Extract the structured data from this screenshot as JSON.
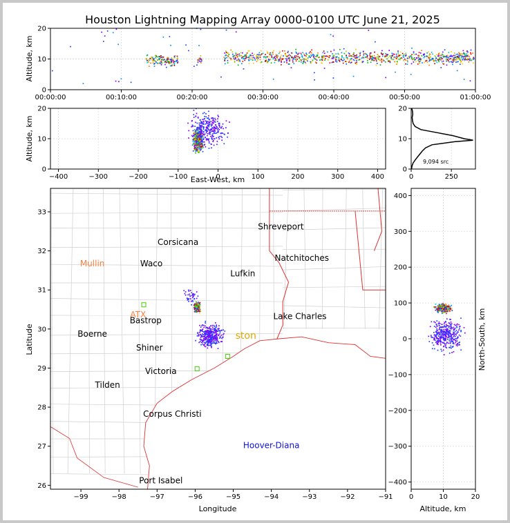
{
  "title": "Houston Lightning Mapping Array 0000-0100 UTC June 21, 2025",
  "chart_data": [
    {
      "type": "scatter",
      "panel": "altitude-time",
      "ylabel": "Altitude, km",
      "xlim": [
        "00:00:00",
        "01:00:00"
      ],
      "ylim": [
        0,
        20
      ],
      "xticks": [
        "00:00:00",
        "00:10:00",
        "00:20:00",
        "00:30:00",
        "00:40:00",
        "00:50:00",
        "01:00:00"
      ],
      "yticks": [
        "0",
        "10",
        "20"
      ],
      "grid": true,
      "clusters": [
        {
          "x_min": 13.5,
          "x_max": 18.0,
          "y_center": 9.5,
          "y_spread": 2.5,
          "count": 140
        },
        {
          "x_min": 20.8,
          "x_max": 21.4,
          "y_center": 10.0,
          "y_spread": 2.0,
          "count": 20
        },
        {
          "x_min": 24.5,
          "x_max": 59.8,
          "y_center": 10.5,
          "y_spread": 3.0,
          "count": 900
        }
      ]
    },
    {
      "type": "scatter",
      "panel": "altitude-east-west",
      "xlabel": "East-West, km",
      "ylabel": "Altitude, km",
      "xlim": [
        -420,
        420
      ],
      "ylim": [
        0,
        20
      ],
      "xticks": [
        "-400",
        "-300",
        "-200",
        "-100",
        "0",
        "100",
        "200",
        "300",
        "400"
      ],
      "yticks": [
        "0",
        "10",
        "20"
      ],
      "grid": true,
      "clusters": [
        {
          "x_center": -50,
          "x_spread": 12,
          "y_center": 9.5,
          "y_spread": 3.5,
          "count": 450,
          "dense": true
        },
        {
          "x_center": -25,
          "x_spread": 50,
          "y_center": 13.0,
          "y_spread": 6.0,
          "count": 300
        }
      ]
    },
    {
      "type": "line",
      "panel": "altitude-histogram",
      "xlim": [
        0,
        400
      ],
      "ylim": [
        0,
        20
      ],
      "xticks": [
        "0",
        "250"
      ],
      "yticks": [
        "0",
        "10",
        "20"
      ],
      "annotation": "9,094 src",
      "grid": true,
      "points": [
        [
          2,
          0
        ],
        [
          5,
          1
        ],
        [
          12,
          2
        ],
        [
          25,
          3
        ],
        [
          40,
          4
        ],
        [
          55,
          5
        ],
        [
          70,
          6
        ],
        [
          90,
          7
        ],
        [
          130,
          8
        ],
        [
          270,
          9
        ],
        [
          385,
          9.5
        ],
        [
          330,
          10
        ],
        [
          260,
          11
        ],
        [
          160,
          12
        ],
        [
          60,
          13
        ],
        [
          25,
          14
        ],
        [
          12,
          15
        ],
        [
          8,
          16
        ],
        [
          6,
          17
        ],
        [
          10,
          18
        ],
        [
          8,
          19
        ],
        [
          4,
          20
        ]
      ]
    },
    {
      "type": "scatter",
      "panel": "plan-view-map",
      "xlabel": "Longitude",
      "ylabel": "Latitude",
      "xlim": [
        -99.8,
        -91
      ],
      "ylim": [
        25.9,
        33.6
      ],
      "xticks": [
        "−99",
        "−98",
        "−97",
        "−96",
        "−95",
        "−94",
        "−93",
        "−92",
        "−91"
      ],
      "yticks": [
        "26",
        "27",
        "28",
        "29",
        "30",
        "31",
        "32",
        "33"
      ],
      "places": [
        {
          "name": "Shreveport",
          "lon": -93.75,
          "lat": 32.55,
          "color": "#000000"
        },
        {
          "name": "Corsicana",
          "lon": -96.45,
          "lat": 32.15,
          "color": "#000000"
        },
        {
          "name": "Mullin",
          "lon": -98.7,
          "lat": 31.6,
          "color": "#ff8040"
        },
        {
          "name": "Waco",
          "lon": -97.15,
          "lat": 31.6,
          "color": "#000000"
        },
        {
          "name": "Natchitoches",
          "lon": -93.2,
          "lat": 31.75,
          "color": "#000000"
        },
        {
          "name": "Lufkin",
          "lon": -94.75,
          "lat": 31.35,
          "color": "#000000"
        },
        {
          "name": "ATX",
          "lon": -97.5,
          "lat": 30.3,
          "color": "#ff8040"
        },
        {
          "name": "Bastrop",
          "lon": -97.3,
          "lat": 30.15,
          "color": "#000000"
        },
        {
          "name": "Lake Charles",
          "lon": -93.25,
          "lat": 30.25,
          "color": "#000000"
        },
        {
          "name": "Boerne",
          "lon": -98.7,
          "lat": 29.8,
          "color": "#000000"
        },
        {
          "name": "ston",
          "lon": -94.67,
          "lat": 29.75,
          "color": "#e0a800"
        },
        {
          "name": "Shiner",
          "lon": -97.2,
          "lat": 29.45,
          "color": "#000000"
        },
        {
          "name": "Victoria",
          "lon": -96.9,
          "lat": 28.85,
          "color": "#000000"
        },
        {
          "name": "Tilden",
          "lon": -98.3,
          "lat": 28.5,
          "color": "#000000"
        },
        {
          "name": "Corpus Christi",
          "lon": -96.6,
          "lat": 27.75,
          "color": "#000000"
        },
        {
          "name": "Hoover-Diana",
          "lon": -94.0,
          "lat": 26.95,
          "color": "#1010e0"
        },
        {
          "name": "Port Isabel",
          "lon": -96.9,
          "lat": 26.05,
          "color": "#000000"
        }
      ],
      "stations": [
        {
          "lon": -97.35,
          "lat": 30.62
        },
        {
          "lon": -95.95,
          "lat": 28.98
        },
        {
          "lon": -95.15,
          "lat": 29.3
        }
      ],
      "clusters": [
        {
          "lon_center": -95.95,
          "lat_center": 30.55,
          "lon_spread": 0.08,
          "lat_spread": 0.12,
          "count": 350,
          "dense": true
        },
        {
          "lon_center": -95.6,
          "lat_center": 29.82,
          "lon_spread": 0.35,
          "lat_spread": 0.3,
          "count": 350
        },
        {
          "lon_center": -96.1,
          "lat_center": 30.85,
          "lon_spread": 0.2,
          "lat_spread": 0.2,
          "count": 40
        }
      ]
    },
    {
      "type": "scatter",
      "panel": "north-south-altitude",
      "xlabel": "Altitude, km",
      "ylabel": "North-South, km",
      "xlim": [
        0,
        20
      ],
      "ylim": [
        -420,
        420
      ],
      "xticks": [
        "0",
        "10",
        "20"
      ],
      "yticks": [
        "−400",
        "−300",
        "−200",
        "−100",
        "0",
        "100",
        "200",
        "300",
        "400"
      ],
      "grid": true,
      "clusters": [
        {
          "x_center": 10,
          "x_spread": 2.5,
          "y_center": 85,
          "y_spread": 12,
          "count": 450,
          "dense": true
        },
        {
          "x_center": 11,
          "x_spread": 5.5,
          "y_center": 10,
          "y_spread": 45,
          "count": 350
        }
      ]
    }
  ]
}
